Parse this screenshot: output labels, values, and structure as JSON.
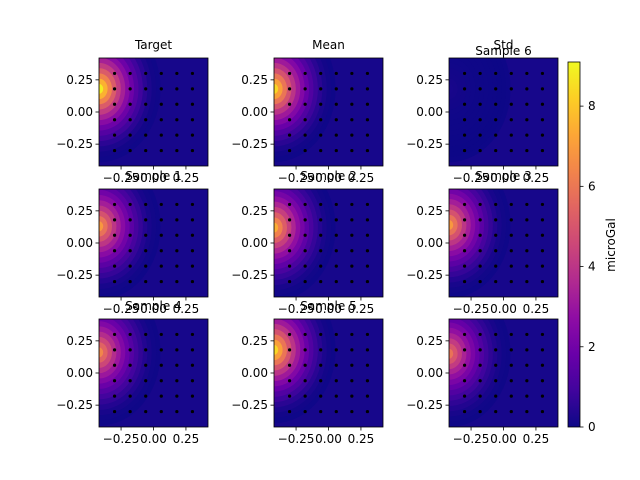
{
  "chart_data": {
    "type": "heatmap",
    "colormap": "plasma",
    "colorbar": {
      "label": "microGal",
      "range": [
        0,
        9.1
      ],
      "ticks": [
        0,
        2,
        4,
        6,
        8
      ]
    },
    "axes": {
      "xlim": [
        -0.42,
        0.42
      ],
      "ylim": [
        -0.42,
        0.42
      ],
      "xticks": [
        -0.25,
        0.0,
        0.25
      ],
      "xtick_labels": [
        "−0.25",
        "0.00",
        "0.25"
      ],
      "yticks": [
        0.25,
        0.0,
        -0.25
      ],
      "ytick_labels": [
        "0.25",
        "0.00",
        "−0.25"
      ]
    },
    "grid_points": {
      "x": [
        -0.3,
        -0.18,
        -0.06,
        0.06,
        0.18,
        0.3
      ],
      "y": [
        0.3,
        0.18,
        0.06,
        -0.06,
        -0.18,
        -0.3
      ]
    },
    "panels": [
      {
        "title": "Target",
        "peak": {
          "x": -0.42,
          "y": 0.18,
          "value": 9.0
        }
      },
      {
        "title": "Mean",
        "peak": {
          "x": -0.42,
          "y": 0.18,
          "value": 8.5
        }
      },
      {
        "title": "Std",
        "subtitle": "Sample 6",
        "peak": {
          "x": -0.42,
          "y": 0.18,
          "value": 0.2
        }
      },
      {
        "title": "Sample 1",
        "peak": {
          "x": -0.42,
          "y": 0.13,
          "value": 7.0
        }
      },
      {
        "title": "Sample 2",
        "peak": {
          "x": -0.42,
          "y": 0.12,
          "value": 7.5
        }
      },
      {
        "title": "Sample 3",
        "peak": {
          "x": -0.42,
          "y": 0.14,
          "value": 7.0
        }
      },
      {
        "title": "Sample 4",
        "peak": {
          "x": -0.42,
          "y": 0.16,
          "value": 6.5
        }
      },
      {
        "title": "Sample 5",
        "peak": {
          "x": -0.42,
          "y": 0.18,
          "value": 8.5
        }
      },
      {
        "title": "",
        "peak": {
          "x": -0.42,
          "y": 0.15,
          "value": 6.0
        }
      }
    ]
  }
}
